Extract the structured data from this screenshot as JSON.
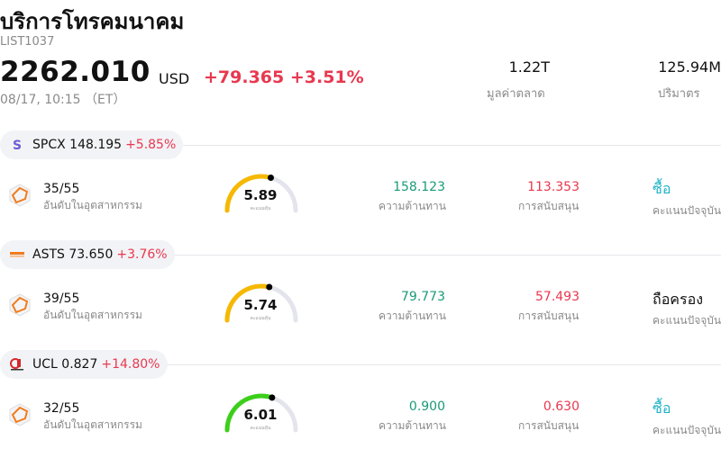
{
  "header": {
    "title": "บริการโทรคมนาคม",
    "code": "LIST1037",
    "price": "2262.010",
    "currency": "USD",
    "change": "+79.365 +3.51%",
    "time": "08/17, 10:15 （ET）",
    "market_cap_value": "1.22T",
    "market_cap_label": "มูลค่าตลาด",
    "volume_value": "125.94M",
    "volume_label": "ปริมาตร"
  },
  "stocks": [
    {
      "symbol": "SPCX",
      "price": "148.195",
      "change": "+5.85%",
      "rank": "35/55",
      "rank_label": "อันดับในอุตสาหกรรม",
      "score": "5.89",
      "score_label": "คะแนนหุ้น",
      "score_fraction": 0.589,
      "gauge_color": "#f6b800",
      "resistance": "158.123",
      "resistance_label": "ความต้านทาน",
      "support": "113.353",
      "support_label": "การสนับสนุน",
      "rating": "ซื้อ",
      "rating_label": "คะแนนปัจจุบัน"
    },
    {
      "symbol": "ASTS",
      "price": "73.650",
      "change": "+3.76%",
      "rank": "39/55",
      "rank_label": "อันดับในอุตสาหกรรม",
      "score": "5.74",
      "score_label": "คะแนนหุ้น",
      "score_fraction": 0.574,
      "gauge_color": "#f6b800",
      "resistance": "79.773",
      "resistance_label": "ความต้านทาน",
      "support": "57.493",
      "support_label": "การสนับสนุน",
      "rating": "ถือครอง",
      "rating_label": "คะแนนปัจจุบัน"
    },
    {
      "symbol": "UCL",
      "price": "0.827",
      "change": "+14.80%",
      "rank": "32/55",
      "rank_label": "อันดับในอุตสาหกรรม",
      "score": "6.01",
      "score_label": "คะแนนหุ้น",
      "score_fraction": 0.601,
      "gauge_color": "#3ccf1a",
      "resistance": "0.900",
      "resistance_label": "ความต้านทาน",
      "support": "0.630",
      "support_label": "การสนับสนุน",
      "rating": "ซื้อ",
      "rating_label": "คะแนนปัจจุบัน"
    }
  ],
  "colors": {
    "up": "#e8384f",
    "resistance": "#1a9a78",
    "buy": "#1fb3c6"
  }
}
